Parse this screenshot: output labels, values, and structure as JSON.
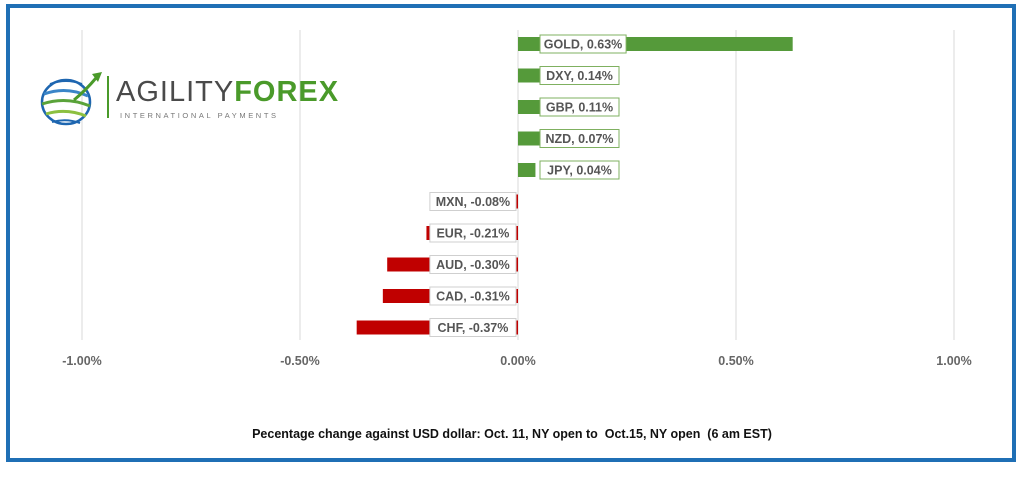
{
  "brand": {
    "name_part1": "AGILITY",
    "name_part2": "FOREX",
    "tagline": "INTERNATIONAL PAYMENTS"
  },
  "caption": "Pecentage change against USD dollar: Oct. 11, NY open to  Oct.15, NY open  (6 am EST)",
  "colors": {
    "positive": "#559a3a",
    "negative": "#c00000",
    "frame": "#1f6fb5",
    "grid": "#d9d9d9"
  },
  "chart_data": {
    "type": "bar",
    "orientation": "horizontal",
    "categories": [
      "GOLD",
      "DXY",
      "GBP",
      "NZD",
      "JPY",
      "MXN",
      "EUR",
      "AUD",
      "CAD",
      "CHF"
    ],
    "values": [
      0.63,
      0.14,
      0.11,
      0.07,
      0.04,
      -0.08,
      -0.21,
      -0.3,
      -0.31,
      -0.37
    ],
    "data_labels": [
      "GOLD, 0.63%",
      "DXY, 0.14%",
      "GBP, 0.11%",
      "NZD, 0.07%",
      "JPY, 0.04%",
      "MXN, -0.08%",
      "EUR, -0.21%",
      "AUD, -0.30%",
      "CAD, -0.31%",
      "CHF, -0.37%"
    ],
    "x_ticks": [
      -1.0,
      -0.5,
      0.0,
      0.5,
      1.0
    ],
    "x_tick_labels": [
      "-1.00%",
      "-0.50%",
      "0.00%",
      "0.50%",
      "1.00%"
    ],
    "xlim": [
      -1.0,
      1.0
    ],
    "grid": true,
    "legend": "none"
  }
}
